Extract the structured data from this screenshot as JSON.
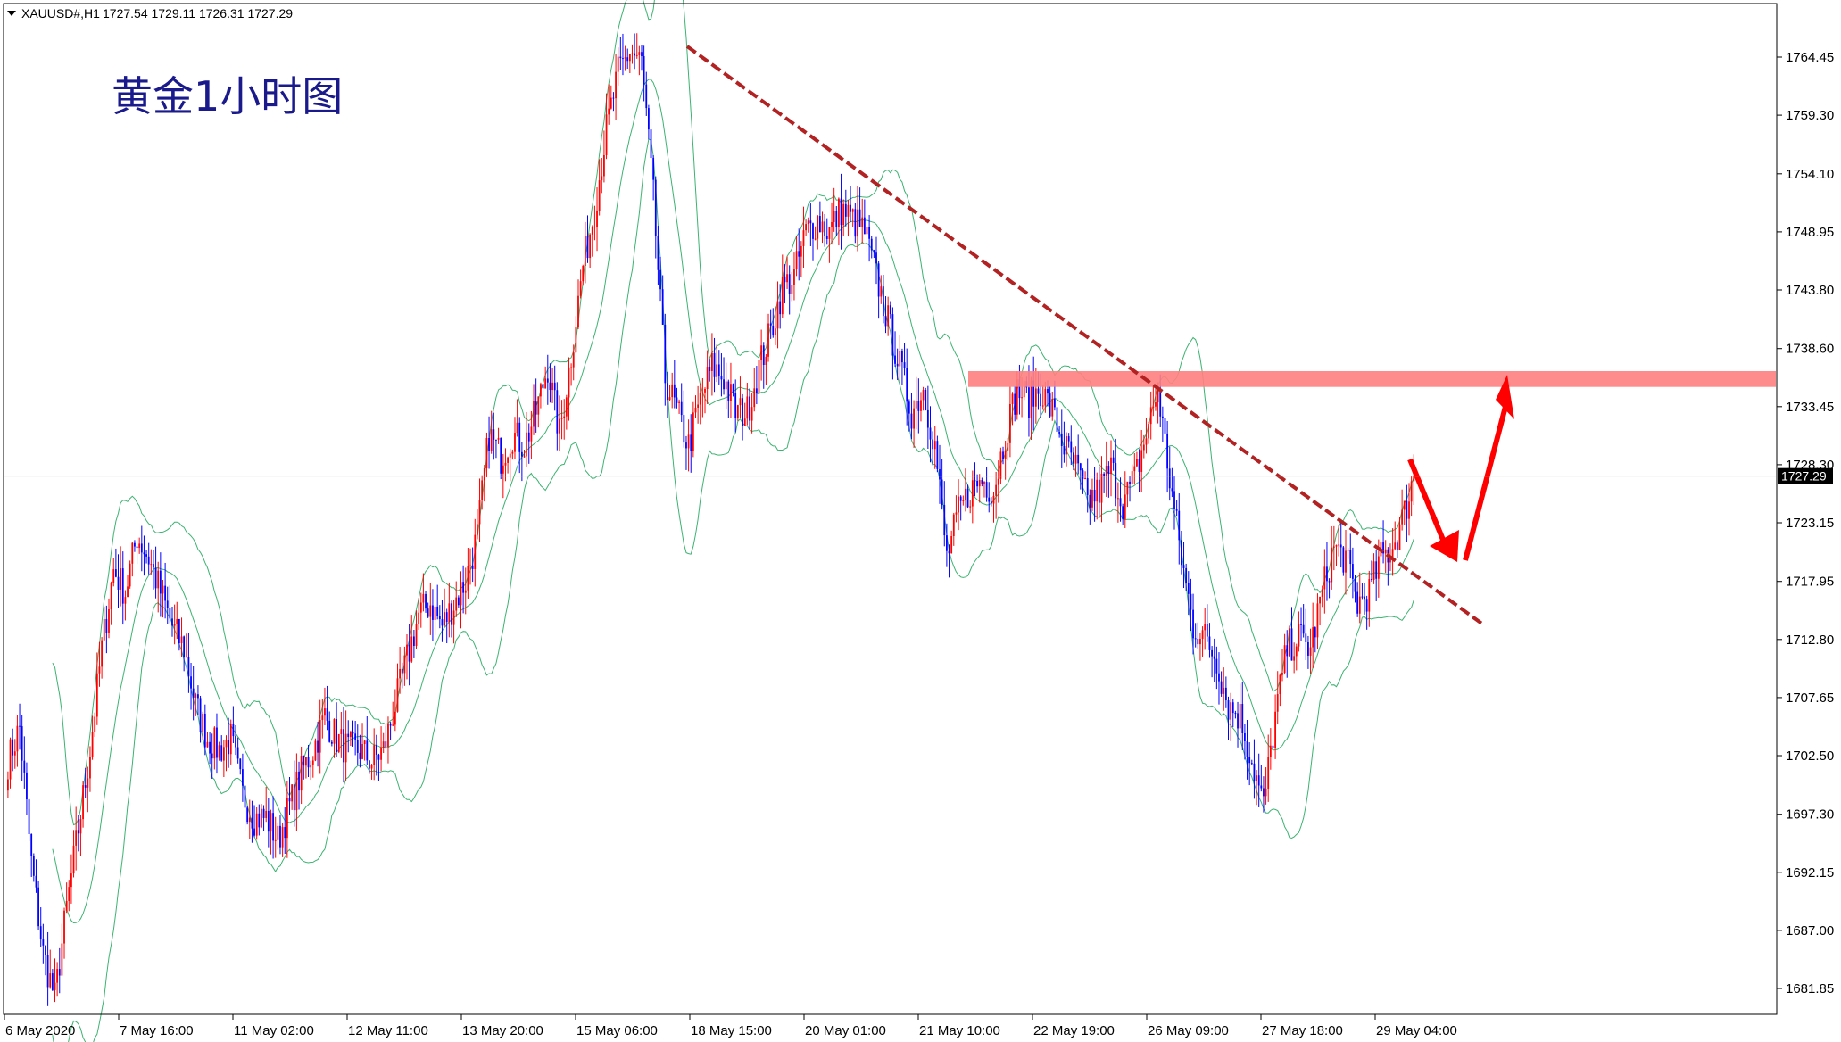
{
  "header": {
    "symbol": "XAUUSD#,H1",
    "ohlc": "1727.54 1729.11 1726.31 1727.29"
  },
  "chart_title": "黄金1小时图",
  "current_price_label": "1727.29",
  "colors": {
    "bull": "#ff0000",
    "bear": "#0000ff",
    "band": "#3cb371",
    "trendline": "#b22222",
    "zone": "#ff7f7f",
    "arrow": "#ff0000",
    "title": "#1a1a8c"
  },
  "chart_data": {
    "type": "candlestick",
    "title": "黄金1小时图",
    "y_ticks": [
      "1764.45",
      "1759.30",
      "1754.10",
      "1748.95",
      "1743.80",
      "1738.60",
      "1733.45",
      "1728.30",
      "1723.15",
      "1717.95",
      "1712.80",
      "1707.65",
      "1702.50",
      "1697.30",
      "1692.15",
      "1687.00",
      "1681.85"
    ],
    "x_ticks": [
      "6 May 2020",
      "7 May 16:00",
      "11 May 02:00",
      "12 May 11:00",
      "13 May 20:00",
      "15 May 06:00",
      "18 May 15:00",
      "20 May 01:00",
      "21 May 10:00",
      "22 May 19:00",
      "26 May 09:00",
      "27 May 18:00",
      "29 May 04:00"
    ],
    "ylim": [
      1680.5,
      1770.5
    ],
    "current_price": 1727.29,
    "grid": false,
    "close_path": [
      [
        0,
        1702
      ],
      [
        5,
        1705
      ],
      [
        10,
        1693
      ],
      [
        15,
        1685
      ],
      [
        20,
        1681
      ],
      [
        25,
        1689
      ],
      [
        30,
        1696
      ],
      [
        35,
        1703
      ],
      [
        40,
        1712
      ],
      [
        45,
        1719
      ],
      [
        50,
        1717
      ],
      [
        55,
        1722
      ],
      [
        60,
        1720
      ],
      [
        65,
        1717
      ],
      [
        70,
        1714
      ],
      [
        75,
        1712
      ],
      [
        80,
        1707
      ],
      [
        85,
        1704
      ],
      [
        90,
        1703
      ],
      [
        95,
        1704
      ],
      [
        100,
        1699
      ],
      [
        105,
        1697
      ],
      [
        110,
        1697
      ],
      [
        115,
        1695
      ],
      [
        120,
        1698
      ],
      [
        125,
        1701
      ],
      [
        130,
        1703
      ],
      [
        135,
        1706
      ],
      [
        140,
        1704
      ],
      [
        145,
        1703
      ],
      [
        150,
        1703
      ],
      [
        155,
        1702
      ],
      [
        160,
        1703
      ],
      [
        165,
        1707
      ],
      [
        170,
        1711
      ],
      [
        175,
        1715
      ],
      [
        180,
        1716
      ],
      [
        185,
        1714
      ],
      [
        190,
        1716
      ],
      [
        195,
        1718
      ],
      [
        200,
        1722
      ],
      [
        205,
        1731
      ],
      [
        210,
        1729
      ],
      [
        215,
        1731
      ],
      [
        220,
        1730
      ],
      [
        225,
        1733
      ],
      [
        230,
        1737
      ],
      [
        235,
        1731
      ],
      [
        240,
        1738
      ],
      [
        245,
        1746
      ],
      [
        250,
        1751
      ],
      [
        255,
        1758
      ],
      [
        260,
        1763
      ],
      [
        265,
        1765
      ],
      [
        270,
        1764
      ],
      [
        275,
        1752
      ],
      [
        280,
        1736
      ],
      [
        285,
        1733
      ],
      [
        290,
        1730
      ],
      [
        295,
        1734
      ],
      [
        300,
        1737
      ],
      [
        305,
        1736
      ],
      [
        310,
        1733
      ],
      [
        315,
        1733
      ],
      [
        320,
        1737
      ],
      [
        325,
        1740
      ],
      [
        330,
        1744
      ],
      [
        335,
        1745
      ],
      [
        340,
        1749
      ],
      [
        345,
        1750
      ],
      [
        350,
        1749
      ],
      [
        355,
        1751
      ],
      [
        360,
        1750
      ],
      [
        365,
        1749
      ],
      [
        370,
        1745
      ],
      [
        375,
        1741
      ],
      [
        380,
        1737
      ],
      [
        385,
        1733
      ],
      [
        390,
        1735
      ],
      [
        395,
        1730
      ],
      [
        400,
        1720
      ],
      [
        405,
        1724
      ],
      [
        410,
        1726
      ],
      [
        415,
        1727
      ],
      [
        420,
        1726
      ],
      [
        425,
        1731
      ],
      [
        430,
        1735
      ],
      [
        435,
        1734
      ],
      [
        440,
        1735
      ],
      [
        445,
        1733
      ],
      [
        450,
        1730
      ],
      [
        455,
        1728
      ],
      [
        460,
        1725
      ],
      [
        465,
        1726
      ],
      [
        470,
        1728
      ],
      [
        475,
        1725
      ],
      [
        480,
        1727
      ],
      [
        485,
        1731
      ],
      [
        490,
        1735
      ],
      [
        495,
        1727
      ],
      [
        500,
        1720
      ],
      [
        505,
        1714
      ],
      [
        510,
        1713
      ],
      [
        515,
        1711
      ],
      [
        520,
        1707
      ],
      [
        525,
        1706
      ],
      [
        530,
        1702
      ],
      [
        535,
        1698
      ],
      [
        540,
        1706
      ],
      [
        545,
        1712
      ],
      [
        550,
        1713
      ],
      [
        555,
        1712
      ],
      [
        560,
        1717
      ],
      [
        565,
        1721
      ],
      [
        570,
        1720
      ],
      [
        575,
        1716
      ],
      [
        580,
        1717
      ],
      [
        585,
        1720
      ],
      [
        590,
        1721
      ],
      [
        595,
        1724
      ],
      [
        599,
        1727.29
      ]
    ],
    "candle_count": 600,
    "bollinger_bands": "upper/middle/lower envelope following price",
    "annotations": [
      "descending trendline",
      "resistance zone near 1734-1737",
      "down-then-up arrows"
    ]
  }
}
